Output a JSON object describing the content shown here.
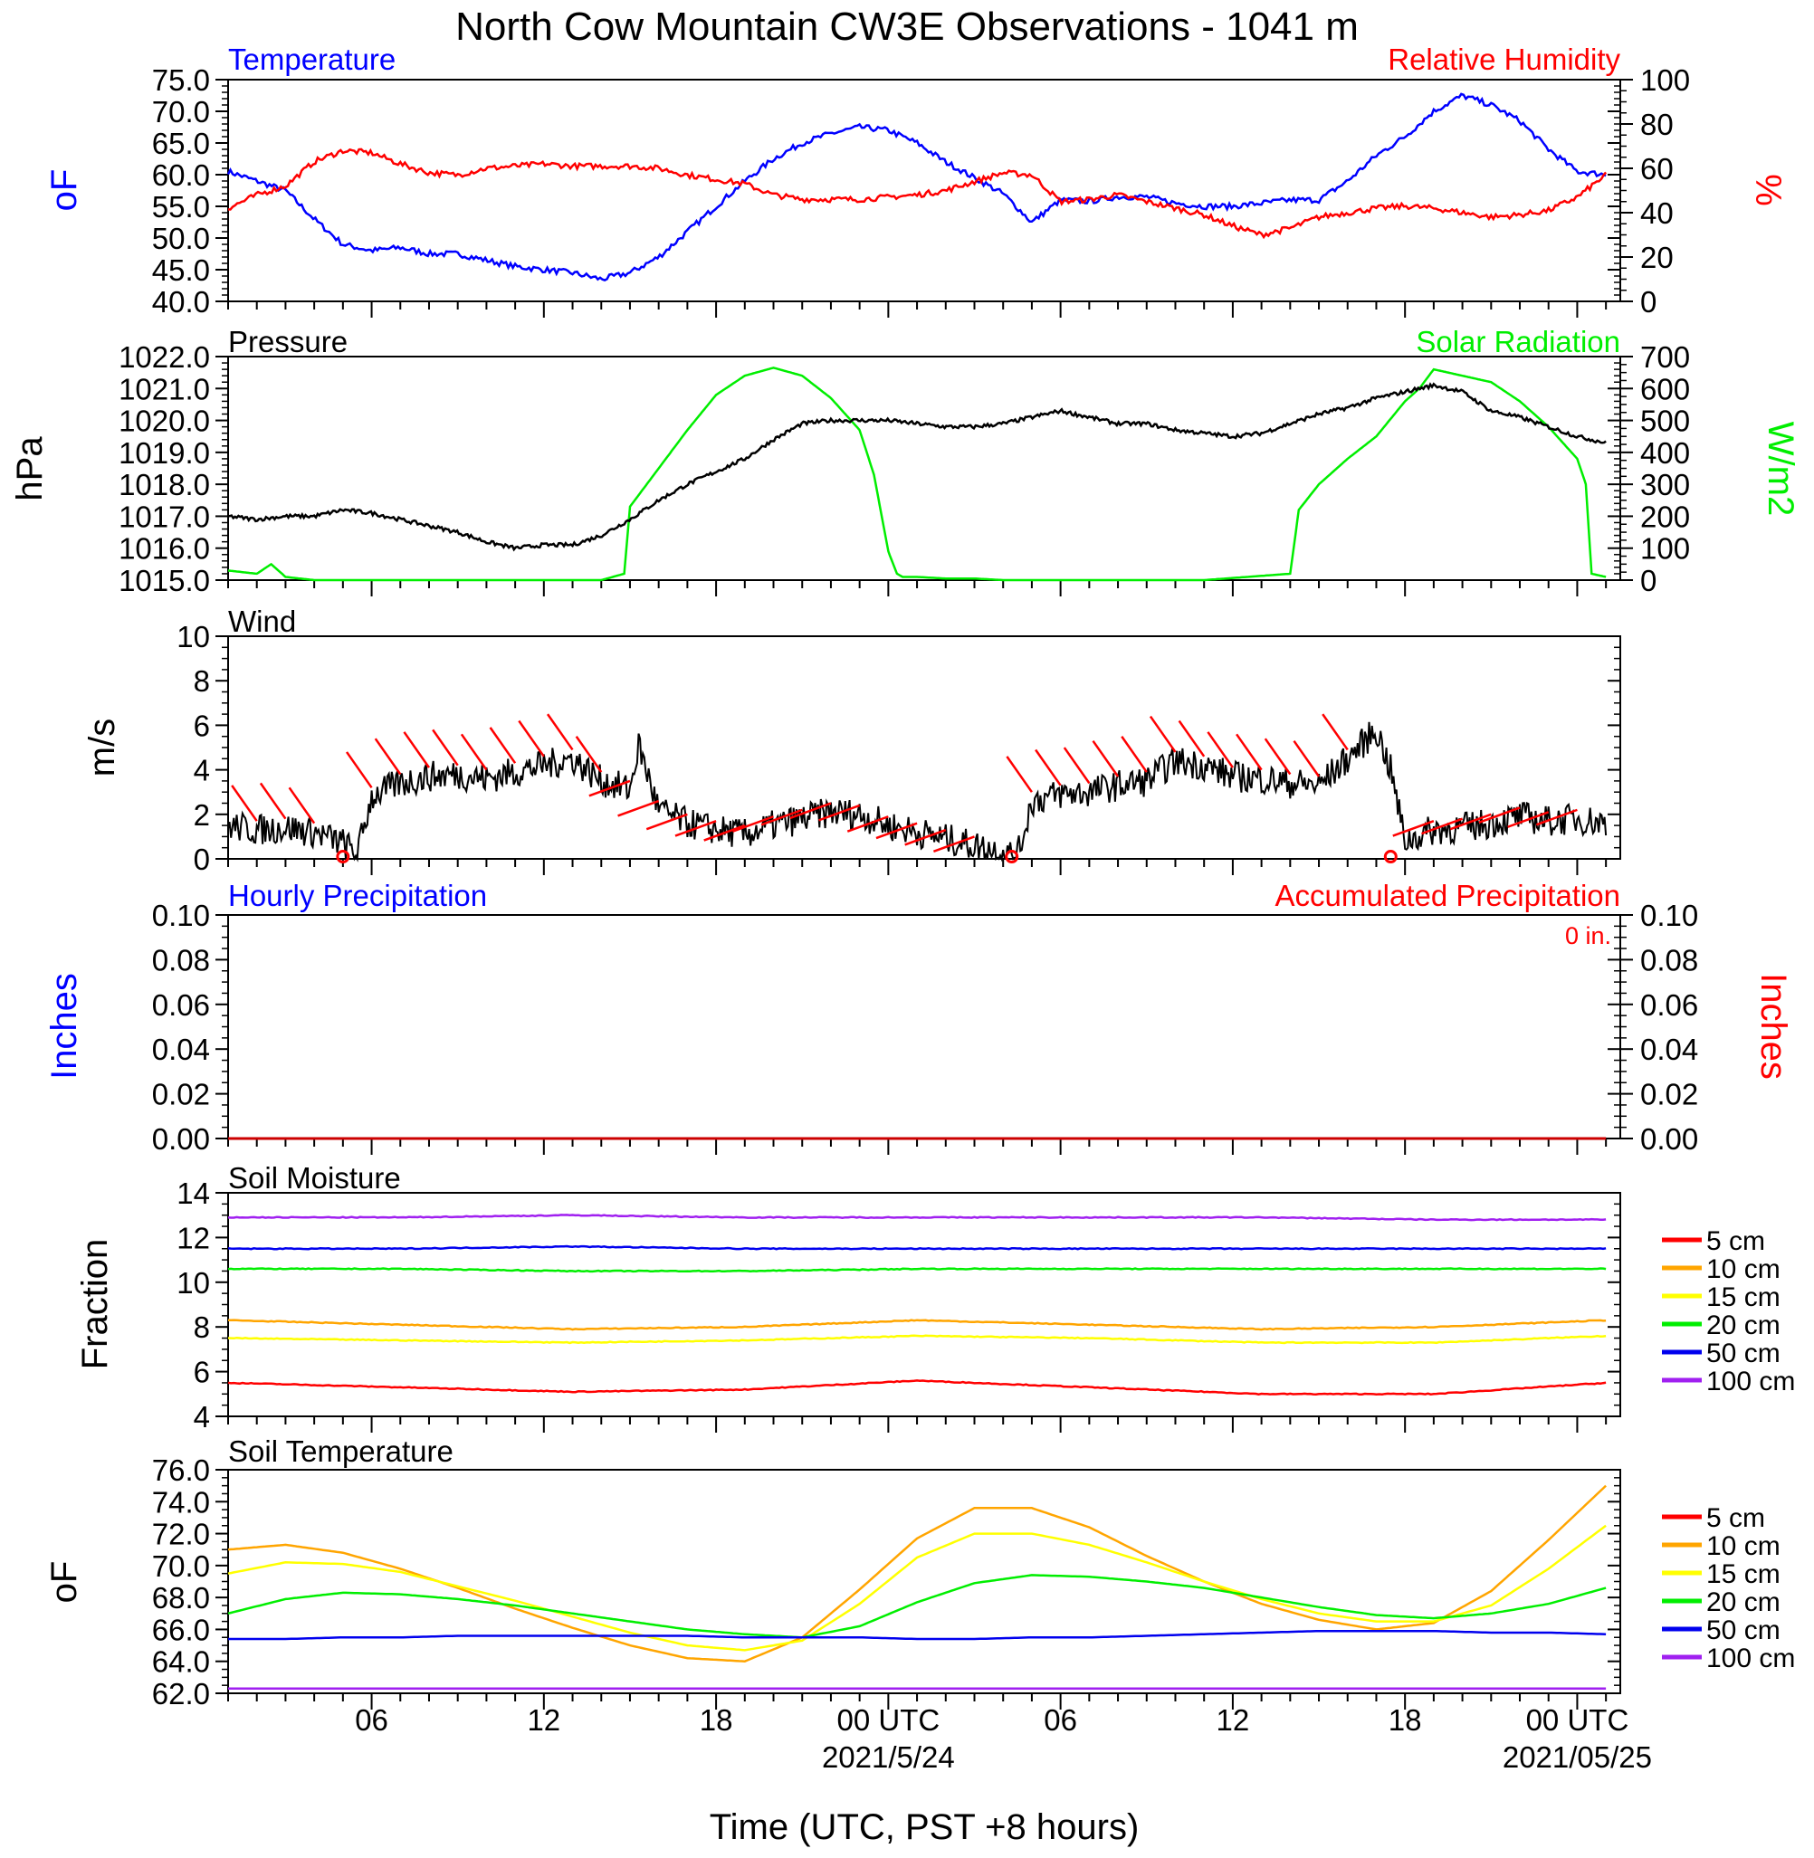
{
  "title": "North Cow Mountain CW3E Observations - 1041 m",
  "colors": {
    "temperature": "#0000ff",
    "rh": "#ff0000",
    "pressure": "#000000",
    "solar": "#00ff00",
    "wind": "#000000",
    "barb": "#ff0000",
    "precip_hourly": "#0000ff",
    "precip_acc": "#ff0000",
    "depths": [
      "#ff0000",
      "#ffa500",
      "#ffff00",
      "#00ee00",
      "#0000ee",
      "#a020f0"
    ]
  },
  "xaxis": {
    "label": "Time (UTC, PST +8 hours)",
    "range_hours": [
      0,
      48.5
    ],
    "tick_labels": [
      {
        "h": 5,
        "text": "06"
      },
      {
        "h": 11,
        "text": "12"
      },
      {
        "h": 17,
        "text": "18"
      },
      {
        "h": 23,
        "text": "00 UTC"
      },
      {
        "h": 29,
        "text": "06"
      },
      {
        "h": 35,
        "text": "12"
      },
      {
        "h": 41,
        "text": "18"
      },
      {
        "h": 47,
        "text": "00 UTC"
      }
    ],
    "date_labels": [
      {
        "h": 23,
        "text": "2021/5/24"
      },
      {
        "h": 47,
        "text": "2021/05/25"
      }
    ]
  },
  "panels": {
    "temp_rh": {
      "left_title": "Temperature",
      "right_title": "Relative Humidity",
      "left_unit": "oF",
      "right_unit": "%",
      "left_ticks": [
        "75.0",
        "70.0",
        "65.0",
        "60.0",
        "55.0",
        "50.0",
        "45.0",
        "40.0"
      ],
      "right_ticks": [
        "100",
        "80",
        "60",
        "40",
        "20",
        "0"
      ]
    },
    "pressure_solar": {
      "left_title": "Pressure",
      "right_title": "Solar Radiation",
      "left_unit": "hPa",
      "right_unit": "W/m2",
      "left_ticks": [
        "1022.0",
        "1021.0",
        "1020.0",
        "1019.0",
        "1018.0",
        "1017.0",
        "1016.0",
        "1015.0"
      ],
      "right_ticks": [
        "700",
        "600",
        "500",
        "400",
        "300",
        "200",
        "100",
        "0"
      ]
    },
    "wind": {
      "left_title": "Wind",
      "left_unit": "m/s",
      "left_ticks": [
        "10",
        "8",
        "6",
        "4",
        "2",
        "0"
      ]
    },
    "precip": {
      "left_title": "Hourly Precipitation",
      "right_title": "Accumulated Precipitation",
      "accum_total": "0 in.",
      "left_unit": "Inches",
      "right_unit": "Inches",
      "left_ticks": [
        "0.10",
        "0.08",
        "0.06",
        "0.04",
        "0.02",
        "0.00"
      ],
      "right_ticks": [
        "0.10",
        "0.08",
        "0.06",
        "0.04",
        "0.02",
        "0.00"
      ]
    },
    "soil_moisture": {
      "left_title": "Soil Moisture",
      "left_unit": "Fraction",
      "left_ticks": [
        "14",
        "12",
        "10",
        "8",
        "6",
        "4"
      ],
      "legend": [
        "5 cm",
        "10 cm",
        "15 cm",
        "20 cm",
        "50 cm",
        "100 cm"
      ]
    },
    "soil_temp": {
      "left_title": "Soil Temperature",
      "left_unit": "oF",
      "left_ticks": [
        "76.0",
        "74.0",
        "72.0",
        "70.0",
        "68.0",
        "66.0",
        "64.0",
        "62.0"
      ],
      "legend": [
        "5 cm",
        "10 cm",
        "15 cm",
        "20 cm",
        "50 cm",
        "100 cm"
      ]
    }
  },
  "chart_data": [
    {
      "type": "line",
      "title": "Temperature",
      "ylabel": "oF",
      "ylim": [
        40,
        75
      ],
      "x_hours": [
        0,
        1,
        2,
        3,
        4,
        5,
        6,
        7,
        8,
        9,
        10,
        11,
        12,
        13,
        14,
        15,
        16,
        17,
        18,
        19,
        20,
        21,
        22,
        23,
        24,
        25,
        26,
        27,
        28,
        29,
        30,
        31,
        32,
        33,
        34,
        35,
        36,
        37,
        38,
        39,
        40,
        41,
        42,
        43,
        44,
        45,
        46,
        47,
        48
      ],
      "values": [
        60.5,
        59,
        57.5,
        53,
        49,
        48,
        48.5,
        47.5,
        47.5,
        46.5,
        45.5,
        45,
        44.5,
        43.5,
        44.5,
        47,
        51,
        55,
        59,
        62.5,
        65,
        66.5,
        67.5,
        67,
        65,
        62,
        59.5,
        57,
        52.5,
        56,
        55.8,
        56.5,
        56.5,
        55.5,
        55,
        55,
        55.5,
        56,
        56,
        59,
        63,
        66,
        70,
        72.5,
        71,
        68.5,
        64,
        60.5,
        60
      ]
    },
    {
      "type": "line",
      "title": "Relative Humidity",
      "ylabel": "%",
      "ylim": [
        0,
        100
      ],
      "x_hours": [
        0,
        1,
        2,
        3,
        4,
        5,
        6,
        7,
        8,
        9,
        10,
        11,
        12,
        13,
        14,
        15,
        16,
        17,
        18,
        19,
        20,
        21,
        22,
        23,
        24,
        25,
        26,
        27,
        28,
        29,
        30,
        31,
        32,
        33,
        34,
        35,
        36,
        37,
        38,
        39,
        40,
        41,
        42,
        43,
        44,
        45,
        46,
        47,
        48
      ],
      "values": [
        42,
        48,
        52,
        63,
        68,
        67,
        62,
        58,
        57,
        60,
        61,
        62,
        61,
        61,
        61,
        60,
        57,
        55,
        53,
        48,
        46,
        46,
        46,
        47,
        48,
        50,
        54,
        58,
        57,
        45,
        46,
        48,
        45,
        42,
        39,
        34,
        30,
        33,
        38,
        40,
        42,
        43,
        42,
        40,
        38,
        39,
        41,
        47,
        57
      ]
    },
    {
      "type": "line",
      "title": "Pressure",
      "ylabel": "hPa",
      "ylim": [
        1015,
        1022
      ],
      "x_hours": [
        0,
        1,
        2,
        3,
        4,
        5,
        6,
        7,
        8,
        9,
        10,
        11,
        12,
        13,
        14,
        15,
        16,
        17,
        18,
        19,
        20,
        21,
        22,
        23,
        24,
        25,
        26,
        27,
        28,
        29,
        30,
        31,
        32,
        33,
        34,
        35,
        36,
        37,
        38,
        39,
        40,
        41,
        42,
        43,
        44,
        45,
        46,
        47,
        48
      ],
      "values": [
        1017,
        1016.9,
        1017,
        1017,
        1017.2,
        1017.1,
        1016.9,
        1016.7,
        1016.5,
        1016.2,
        1016,
        1016.1,
        1016.1,
        1016.4,
        1016.9,
        1017.5,
        1018,
        1018.4,
        1018.8,
        1019.4,
        1019.9,
        1020,
        1020,
        1020,
        1019.9,
        1019.8,
        1019.8,
        1019.9,
        1020.1,
        1020.3,
        1020.1,
        1019.9,
        1019.9,
        1019.7,
        1019.6,
        1019.5,
        1019.6,
        1019.9,
        1020.2,
        1020.4,
        1020.7,
        1020.9,
        1021.1,
        1020.9,
        1020.3,
        1020.1,
        1019.8,
        1019.5,
        1019.3
      ]
    },
    {
      "type": "line",
      "title": "Solar Radiation",
      "ylabel": "W/m2",
      "ylim": [
        0,
        700
      ],
      "x_hours": [
        0,
        1,
        1.5,
        2,
        3,
        4,
        5,
        6,
        7,
        8,
        9,
        10,
        11,
        12,
        13,
        13.8,
        14,
        15,
        16,
        17,
        18,
        19,
        20,
        21,
        22,
        22.5,
        23,
        23.3,
        23.5,
        24,
        25,
        26,
        27,
        28,
        29,
        30,
        31,
        32,
        33,
        34,
        37,
        37.3,
        38,
        39,
        40,
        41,
        41.5,
        42,
        43,
        44,
        45,
        46,
        47,
        47.3,
        47.5,
        48
      ],
      "values": [
        30,
        20,
        50,
        10,
        0,
        0,
        0,
        0,
        0,
        0,
        0,
        0,
        0,
        0,
        0,
        20,
        230,
        350,
        470,
        580,
        640,
        665,
        640,
        570,
        470,
        330,
        90,
        20,
        10,
        10,
        5,
        5,
        0,
        0,
        0,
        0,
        0,
        0,
        0,
        0,
        20,
        220,
        300,
        380,
        450,
        560,
        600,
        660,
        640,
        620,
        560,
        480,
        380,
        300,
        20,
        10
      ]
    },
    {
      "type": "line",
      "title": "Wind",
      "ylabel": "m/s",
      "ylim": [
        0,
        10
      ],
      "x_hours": [
        0,
        1,
        2,
        3,
        4,
        4.5,
        5,
        6,
        7,
        8,
        9,
        10,
        11,
        12,
        13,
        14,
        14.3,
        15,
        16,
        17,
        18,
        19,
        20,
        21,
        22,
        23,
        24,
        25,
        26,
        27,
        27.5,
        28,
        29,
        30,
        31,
        32,
        33,
        34,
        35,
        36,
        37,
        38,
        39,
        40,
        40.5,
        41,
        42,
        43,
        44,
        45,
        46,
        47,
        48
      ],
      "values": [
        1.5,
        1.3,
        1.4,
        1.2,
        0.7,
        0.2,
        2.8,
        3.4,
        3.7,
        3.8,
        3.6,
        3.9,
        4.2,
        4.5,
        3.5,
        3.1,
        5.1,
        2.2,
        1.6,
        1.3,
        1.1,
        1.5,
        1.8,
        2.1,
        2.0,
        1.5,
        1.2,
        0.9,
        0.6,
        0.3,
        0.1,
        2.6,
        2.9,
        3.0,
        3.3,
        3.5,
        4.4,
        4.2,
        3.7,
        3.6,
        3.4,
        3.3,
        4.5,
        5.8,
        4.0,
        0.8,
        1.3,
        1.4,
        1.6,
        1.9,
        1.7,
        1.8,
        1.6
      ]
    },
    {
      "type": "line",
      "title": "Hourly Precipitation",
      "ylabel": "Inches",
      "ylim": [
        0,
        0.1
      ],
      "x_hours": [
        0,
        48.5
      ],
      "values": [
        0,
        0
      ]
    },
    {
      "type": "line",
      "title": "Soil Moisture",
      "ylabel": "Fraction",
      "ylim": [
        4,
        14
      ],
      "x_hours": [
        0,
        6,
        12,
        18,
        24,
        30,
        36,
        42,
        48
      ],
      "series": [
        {
          "name": "5 cm",
          "values": [
            5.5,
            5.3,
            5.1,
            5.2,
            5.6,
            5.3,
            5.0,
            5.0,
            5.5
          ]
        },
        {
          "name": "10 cm",
          "values": [
            8.3,
            8.1,
            7.9,
            8.0,
            8.3,
            8.1,
            7.9,
            8.0,
            8.3
          ]
        },
        {
          "name": "15 cm",
          "values": [
            7.5,
            7.4,
            7.3,
            7.4,
            7.6,
            7.5,
            7.3,
            7.3,
            7.6
          ]
        },
        {
          "name": "20 cm",
          "values": [
            10.6,
            10.6,
            10.5,
            10.5,
            10.6,
            10.6,
            10.6,
            10.6,
            10.6
          ]
        },
        {
          "name": "50 cm",
          "values": [
            11.5,
            11.5,
            11.6,
            11.5,
            11.5,
            11.5,
            11.5,
            11.5,
            11.5
          ]
        },
        {
          "name": "100 cm",
          "values": [
            12.9,
            12.9,
            13.0,
            12.9,
            12.9,
            12.9,
            12.9,
            12.8,
            12.8
          ]
        }
      ]
    },
    {
      "type": "line",
      "title": "Soil Temperature",
      "ylabel": "oF",
      "ylim": [
        62,
        76
      ],
      "x_hours": [
        0,
        2,
        4,
        6,
        8,
        10,
        12,
        14,
        16,
        18,
        20,
        22,
        24,
        26,
        28,
        30,
        32,
        34,
        36,
        38,
        40,
        42,
        44,
        46,
        48
      ],
      "series": [
        {
          "name": "10 cm",
          "values": [
            71.0,
            71.3,
            70.8,
            69.8,
            68.6,
            67.3,
            66.1,
            65.0,
            64.2,
            64.0,
            65.5,
            68.5,
            71.7,
            73.6,
            73.6,
            72.4,
            70.6,
            69.0,
            67.6,
            66.6,
            66.0,
            66.4,
            68.4,
            71.6,
            75.0
          ]
        },
        {
          "name": "15 cm",
          "values": [
            69.5,
            70.2,
            70.1,
            69.6,
            68.7,
            67.8,
            66.8,
            65.8,
            65.0,
            64.7,
            65.3,
            67.6,
            70.5,
            72.0,
            72.0,
            71.3,
            70.2,
            69.0,
            67.9,
            67.0,
            66.5,
            66.5,
            67.5,
            69.8,
            72.5
          ]
        },
        {
          "name": "20 cm",
          "values": [
            67.0,
            67.9,
            68.3,
            68.2,
            67.9,
            67.5,
            67.0,
            66.5,
            66.0,
            65.7,
            65.5,
            66.2,
            67.7,
            68.9,
            69.4,
            69.3,
            69.0,
            68.6,
            68.0,
            67.4,
            66.9,
            66.7,
            67.0,
            67.6,
            68.6
          ]
        },
        {
          "name": "50 cm",
          "values": [
            65.4,
            65.4,
            65.5,
            65.5,
            65.6,
            65.6,
            65.6,
            65.6,
            65.6,
            65.5,
            65.5,
            65.5,
            65.4,
            65.4,
            65.5,
            65.5,
            65.6,
            65.7,
            65.8,
            65.9,
            65.9,
            65.9,
            65.8,
            65.8,
            65.7
          ]
        },
        {
          "name": "100 cm",
          "values": [
            62.3,
            62.3,
            62.3,
            62.3,
            62.3,
            62.3,
            62.3,
            62.3,
            62.3,
            62.3,
            62.3,
            62.3,
            62.3,
            62.3,
            62.3,
            62.3,
            62.3,
            62.3,
            62.3,
            62.3,
            62.3,
            62.3,
            62.3,
            62.3,
            62.3
          ]
        }
      ]
    }
  ]
}
